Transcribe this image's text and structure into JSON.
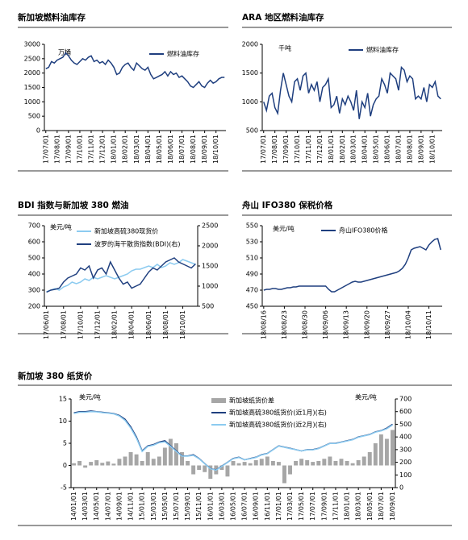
{
  "chart_data": [
    {
      "type": "line",
      "title": "新加坡燃料油库存",
      "y_unit": "万桶",
      "categories": [
        "17/07/01",
        null,
        null,
        null,
        "17/08/01",
        null,
        null,
        null,
        "17/09/01",
        null,
        null,
        null,
        "17/10/01",
        null,
        null,
        null,
        "17/11/01",
        null,
        null,
        null,
        "17/12/01",
        null,
        null,
        null,
        "18/01/01",
        null,
        null,
        null,
        "18/02/01",
        null,
        null,
        null,
        "18/03/01",
        null,
        null,
        null,
        "18/04/01",
        null,
        null,
        null,
        "18/05/01",
        null,
        null,
        null,
        "18/06/01",
        null,
        null,
        null,
        "18/07/01",
        null,
        null,
        null,
        "18/08/01",
        null,
        null,
        null,
        "18/09/01",
        null,
        null,
        null,
        "18/10/01",
        null,
        null,
        null
      ],
      "series": [
        {
          "name": "燃料油库存",
          "color": "#1f3f7f",
          "values": [
            2150,
            2200,
            2400,
            2350,
            2450,
            2500,
            2550,
            2700,
            2600,
            2450,
            2350,
            2300,
            2400,
            2500,
            2450,
            2550,
            2600,
            2400,
            2450,
            2350,
            2400,
            2300,
            2450,
            2350,
            2200,
            1950,
            2000,
            2200,
            2300,
            2350,
            2200,
            2100,
            2350,
            2250,
            2150,
            2100,
            2200,
            1950,
            1800,
            1850,
            1900,
            1950,
            2050,
            1900,
            2050,
            1950,
            2000,
            1850,
            1900,
            1800,
            1700,
            1550,
            1500,
            1600,
            1700,
            1550,
            1500,
            1650,
            1750,
            1650,
            1700,
            1800,
            1850,
            1850
          ]
        }
      ],
      "ylim": [
        0,
        3000
      ],
      "yticks": [
        0,
        500,
        1000,
        1500,
        2000,
        2500,
        3000
      ]
    },
    {
      "type": "line",
      "title": "ARA 地区燃料油库存",
      "y_unit": "千吨",
      "categories": [
        "17/07/01",
        null,
        null,
        null,
        "17/08/01",
        null,
        null,
        null,
        "17/09/01",
        null,
        null,
        null,
        "17/10/01",
        null,
        null,
        null,
        "17/11/01",
        null,
        null,
        null,
        "17/12/01",
        null,
        null,
        null,
        "18/01/01",
        null,
        null,
        null,
        "18/02/01",
        null,
        null,
        null,
        "18/03/01",
        null,
        null,
        null,
        "18/04/01",
        null,
        null,
        null,
        "18/05/01",
        null,
        null,
        null,
        "18/06/01",
        null,
        null,
        null,
        "18/07/01",
        null,
        null,
        null,
        "18/08/01",
        null,
        null,
        null,
        "18/09/01",
        null,
        null,
        null,
        "18/10/01",
        null,
        null,
        null
      ],
      "series": [
        {
          "name": "燃料油库存",
          "color": "#1f3f7f",
          "values": [
            1000,
            850,
            1100,
            1150,
            900,
            800,
            1200,
            1500,
            1300,
            1100,
            1000,
            1350,
            1400,
            1200,
            1450,
            1500,
            1150,
            1300,
            1200,
            1350,
            1000,
            1250,
            1300,
            1400,
            900,
            950,
            1100,
            800,
            1050,
            950,
            1100,
            1000,
            850,
            1200,
            700,
            1000,
            900,
            1150,
            750,
            950,
            1050,
            1100,
            1400,
            1300,
            1150,
            1500,
            1450,
            1400,
            1200,
            1600,
            1550,
            1350,
            1450,
            1400,
            1050,
            1100,
            1050,
            1250,
            1000,
            1300,
            1250,
            1350,
            1100,
            1050
          ]
        }
      ],
      "ylim": [
        500,
        2000
      ],
      "yticks": [
        500,
        1000,
        1500,
        2000
      ]
    },
    {
      "type": "line",
      "title": "BDI 指数与新加坡 380 燃油",
      "y_unit": "美元/吨",
      "categories": [
        "17/06/01",
        null,
        null,
        null,
        "17/08/01",
        null,
        null,
        null,
        "17/10/01",
        null,
        null,
        null,
        "17/12/01",
        null,
        null,
        null,
        "18/02/01",
        null,
        null,
        null,
        "18/04/01",
        null,
        null,
        null,
        "18/06/01",
        null,
        null,
        null,
        "18/08/01",
        null,
        null,
        null,
        "18/10/01",
        null,
        null,
        null
      ],
      "series": [
        {
          "name": "新加坡高硫380现货价",
          "color": "#8ccbf0",
          "values": [
            290,
            300,
            310,
            300,
            320,
            330,
            350,
            340,
            350,
            370,
            360,
            380,
            370,
            380,
            390,
            380,
            370,
            380,
            390,
            400,
            420,
            430,
            430,
            440,
            450,
            440,
            460,
            440,
            450,
            470,
            460,
            470,
            490,
            480,
            470,
            460
          ]
        },
        {
          "name": "波罗的海干散货指数(BDI)(右)",
          "color": "#1f3f7f",
          "axis": "y2",
          "values": [
            850,
            900,
            920,
            950,
            1100,
            1200,
            1250,
            1300,
            1450,
            1400,
            1500,
            1200,
            1400,
            1450,
            1300,
            1600,
            1400,
            1200,
            1050,
            1100,
            950,
            1000,
            1050,
            1200,
            1350,
            1450,
            1400,
            1500,
            1600,
            1650,
            1700,
            1600,
            1550,
            1500,
            1450,
            1550
          ]
        }
      ],
      "ylim": [
        200,
        700
      ],
      "yticks": [
        200,
        300,
        400,
        500,
        600,
        700
      ],
      "y2lim": [
        500,
        2500
      ],
      "y2ticks": [
        500,
        1000,
        1500,
        2000,
        2500
      ]
    },
    {
      "type": "line",
      "title": "舟山 IFO380 保税价格",
      "y_unit": "美元/吨",
      "categories": [
        "18/08/16",
        null,
        null,
        null,
        null,
        null,
        null,
        "18/08/23",
        null,
        null,
        null,
        null,
        null,
        null,
        "18/08/30",
        null,
        null,
        null,
        null,
        null,
        null,
        "18/09/06",
        null,
        null,
        null,
        null,
        null,
        null,
        "18/09/13",
        null,
        null,
        null,
        null,
        null,
        null,
        "18/09/20",
        null,
        null,
        null,
        null,
        null,
        null,
        "18/09/27",
        null,
        null,
        null,
        null,
        null,
        null,
        "18/10/04",
        null,
        null,
        null,
        null,
        null,
        null,
        "18/10/11",
        null,
        null,
        null,
        null
      ],
      "series": [
        {
          "name": "舟山IFO380价格",
          "color": "#1f3f7f",
          "values": [
            470,
            471,
            471,
            472,
            472,
            471,
            471,
            472,
            473,
            473,
            474,
            474,
            475,
            475,
            475,
            475,
            475,
            475,
            475,
            475,
            475,
            475,
            471,
            468,
            468,
            470,
            472,
            474,
            476,
            478,
            480,
            481,
            480,
            480,
            481,
            482,
            483,
            484,
            485,
            486,
            487,
            488,
            489,
            490,
            491,
            492,
            494,
            497,
            502,
            510,
            520,
            522,
            523,
            524,
            522,
            520,
            526,
            530,
            533,
            534,
            520
          ]
        }
      ],
      "ylim": [
        450,
        550
      ],
      "yticks": [
        450,
        470,
        490,
        510,
        530,
        550
      ]
    },
    {
      "type": "combo",
      "title": "新加坡 380 纸货价",
      "y_unit": "美元/吨",
      "y2_unit": "美元/吨",
      "categories": [
        "14/01/01",
        null,
        "14/03/01",
        null,
        "14/05/01",
        null,
        "14/07/01",
        null,
        "14/09/01",
        null,
        "14/11/01",
        null,
        "15/01/01",
        null,
        "15/03/01",
        null,
        "15/05/01",
        null,
        "15/07/01",
        null,
        "15/09/01",
        null,
        "15/11/01",
        null,
        "16/01/01",
        null,
        "16/03/01",
        null,
        "16/05/01",
        null,
        "16/07/01",
        null,
        "16/09/01",
        null,
        "16/11/01",
        null,
        "17/01/01",
        null,
        "17/03/01",
        null,
        "17/05/01",
        null,
        "17/07/01",
        null,
        "17/09/01",
        null,
        "17/11/01",
        null,
        "18/01/01",
        null,
        "18/03/01",
        null,
        "18/05/01",
        null,
        "18/07/01",
        null,
        "18/09/01"
      ],
      "series": [
        {
          "name": "新加坡纸货价差",
          "type": "bar",
          "color": "#a6a6a6",
          "values": [
            0.5,
            1,
            -0.5,
            0.8,
            1.2,
            0.6,
            0.9,
            0.4,
            1.5,
            2,
            3,
            2.5,
            1,
            3,
            1.5,
            2,
            4,
            6,
            5,
            3,
            1,
            -2,
            -1,
            -1.5,
            -3,
            -2,
            -1,
            -2.5,
            1,
            0.5,
            0.8,
            0.5,
            1.2,
            1.5,
            2,
            1,
            0.8,
            -4,
            -2,
            1,
            1.5,
            1.2,
            0.8,
            1,
            1.5,
            2,
            1,
            1.5,
            1,
            0.5,
            1.2,
            2,
            3,
            5,
            7,
            6,
            8
          ]
        },
        {
          "name": "新加坡高硫380纸货价(近1月)(右)",
          "type": "line",
          "color": "#1f3f7f",
          "axis": "y2",
          "values": [
            590,
            600,
            600,
            605,
            600,
            595,
            590,
            585,
            570,
            540,
            480,
            400,
            290,
            330,
            340,
            360,
            370,
            330,
            290,
            250,
            250,
            260,
            230,
            190,
            150,
            140,
            170,
            200,
            230,
            240,
            220,
            230,
            240,
            260,
            270,
            300,
            330,
            320,
            310,
            300,
            290,
            300,
            300,
            310,
            330,
            350,
            350,
            360,
            370,
            380,
            400,
            410,
            420,
            440,
            450,
            470,
            500
          ]
        },
        {
          "name": "新加坡高硫380纸货价(近2月)(右)",
          "type": "line",
          "color": "#8ccbf0",
          "axis": "y2",
          "values": [
            585,
            595,
            595,
            600,
            598,
            592,
            588,
            582,
            565,
            530,
            470,
            390,
            285,
            325,
            335,
            355,
            362,
            325,
            285,
            248,
            248,
            255,
            228,
            188,
            148,
            138,
            168,
            198,
            228,
            238,
            220,
            228,
            238,
            258,
            268,
            298,
            328,
            318,
            308,
            300,
            290,
            298,
            298,
            308,
            328,
            348,
            348,
            358,
            368,
            378,
            398,
            408,
            418,
            438,
            448,
            465,
            495
          ]
        }
      ],
      "ylim": [
        -5,
        15
      ],
      "yticks": [
        -5,
        0,
        5,
        10,
        15
      ],
      "y2lim": [
        0,
        700
      ],
      "y2ticks": [
        0,
        100,
        200,
        300,
        400,
        500,
        600,
        700
      ]
    }
  ]
}
